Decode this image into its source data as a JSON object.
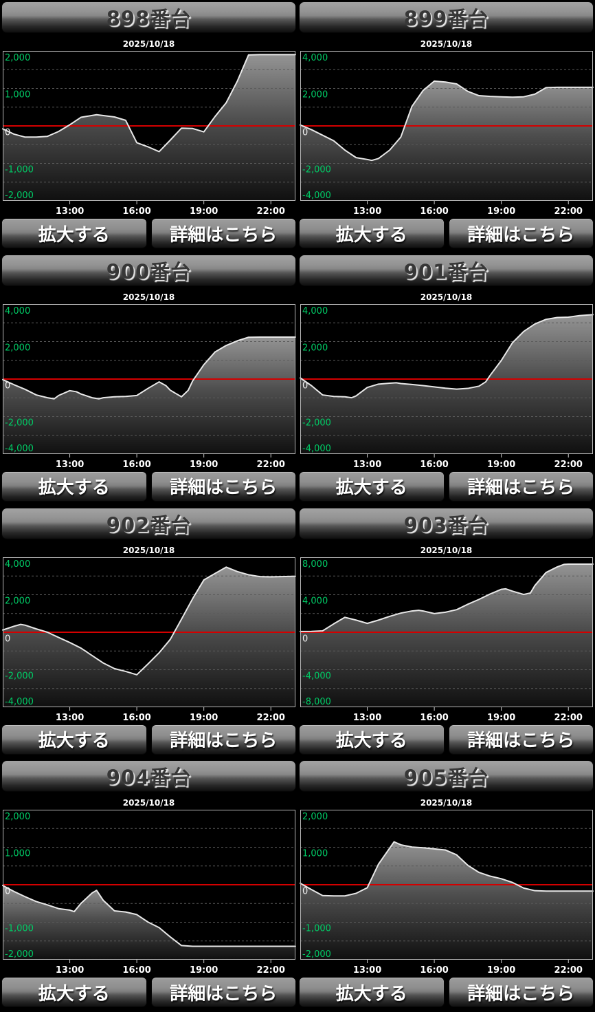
{
  "shared": {
    "zoom_button_label": "拡大する",
    "details_button_label": "詳細はこちら"
  },
  "axis": {
    "x_ticks": [
      "13:00",
      "16:00",
      "19:00",
      "22:00"
    ],
    "x_tick_hours": [
      13,
      16,
      19,
      22
    ],
    "x_range_hours": [
      10,
      23.1
    ]
  },
  "colors": {
    "background": "#000000",
    "zero_line_red": "#d40000",
    "y_label_green": "#00cc66",
    "zero_label_white": "#f0f0f0",
    "grid_dash": "#5a5a5a",
    "data_line": "#e8e8e8",
    "plot_border": "#b8b8b8",
    "x_label_white": "#ffffff"
  },
  "chart_data": [
    {
      "type": "area",
      "machine": "898",
      "title": "898番台",
      "date": "2025/10/18",
      "ylim": [
        -2000,
        2000
      ],
      "y_tick_labels": [
        "2,000",
        "1,000",
        "0",
        "-1,000",
        "-2,000"
      ],
      "x_hours": [
        10,
        10.5,
        11,
        11.5,
        12,
        12.5,
        13,
        13.5,
        14.2,
        15,
        15.5,
        16,
        16.5,
        17,
        17.5,
        18,
        18.5,
        19,
        19.5,
        20,
        20.5,
        21,
        21.5,
        22,
        23.1
      ],
      "values": [
        -80,
        -220,
        -300,
        -300,
        -280,
        -150,
        30,
        230,
        300,
        240,
        150,
        -450,
        -560,
        -690,
        -380,
        -60,
        -70,
        -160,
        250,
        620,
        1200,
        1900,
        1910,
        1910,
        1910
      ]
    },
    {
      "type": "area",
      "machine": "899",
      "title": "899番台",
      "date": "2025/10/18",
      "ylim": [
        -4000,
        4000
      ],
      "y_tick_labels": [
        "4,000",
        "2,000",
        "0",
        "-2,000",
        "-4,000"
      ],
      "x_hours": [
        10,
        10.5,
        11,
        11.5,
        12,
        12.5,
        13,
        13.2,
        13.5,
        14,
        14.5,
        15,
        15.5,
        16,
        16.5,
        17,
        17.5,
        18,
        18.5,
        19,
        19.5,
        20,
        20.5,
        21,
        21.5,
        22,
        23.1
      ],
      "values": [
        50,
        -200,
        -500,
        -800,
        -1300,
        -1700,
        -1800,
        -1850,
        -1750,
        -1300,
        -600,
        1050,
        1900,
        2400,
        2350,
        2250,
        1850,
        1620,
        1580,
        1560,
        1540,
        1560,
        1700,
        2050,
        2070,
        2070,
        2070
      ]
    },
    {
      "type": "area",
      "machine": "900",
      "title": "900番台",
      "date": "2025/10/18",
      "ylim": [
        -4000,
        4000
      ],
      "y_tick_labels": [
        "4,000",
        "2,000",
        "0",
        "-2,000",
        "-4,000"
      ],
      "x_hours": [
        10,
        10.5,
        11,
        11.5,
        12,
        12.3,
        12.5,
        13,
        13.3,
        13.5,
        14,
        14.3,
        14.5,
        15,
        15.5,
        16,
        16.5,
        17,
        17.3,
        17.5,
        18,
        18.3,
        18.5,
        19,
        19.5,
        20,
        20.5,
        21,
        21.5,
        22,
        23.1
      ],
      "values": [
        -30,
        -300,
        -550,
        -850,
        -1000,
        -1060,
        -880,
        -620,
        -680,
        -800,
        -1000,
        -1060,
        -1000,
        -950,
        -930,
        -880,
        -500,
        -150,
        -350,
        -600,
        -950,
        -600,
        -100,
        770,
        1450,
        1800,
        2050,
        2240,
        2250,
        2250,
        2250
      ]
    },
    {
      "type": "area",
      "machine": "901",
      "title": "901番台",
      "date": "2025/10/18",
      "ylim": [
        -4000,
        4000
      ],
      "y_tick_labels": [
        "4,000",
        "2,000",
        "0",
        "-2,000",
        "-4,000"
      ],
      "x_hours": [
        10,
        10.5,
        11,
        11.5,
        12,
        12.3,
        12.5,
        13,
        13.5,
        14,
        14.3,
        14.5,
        15,
        15.5,
        16,
        16.5,
        17,
        17.5,
        18,
        18.3,
        18.5,
        19,
        19.5,
        20,
        20.5,
        21,
        21.5,
        22,
        22.5,
        23.1
      ],
      "values": [
        60,
        -350,
        -850,
        -930,
        -950,
        -1000,
        -900,
        -450,
        -270,
        -220,
        -200,
        -240,
        -290,
        -350,
        -420,
        -490,
        -540,
        -500,
        -380,
        -150,
        200,
        1000,
        1950,
        2550,
        2950,
        3200,
        3300,
        3320,
        3400,
        3450
      ]
    },
    {
      "type": "area",
      "machine": "902",
      "title": "902番台",
      "date": "2025/10/18",
      "ylim": [
        -4000,
        4000
      ],
      "y_tick_labels": [
        "4,000",
        "2,000",
        "0",
        "-2,000",
        "-4,000"
      ],
      "x_hours": [
        10,
        10.5,
        10.8,
        11,
        11.5,
        12,
        12.5,
        13,
        13.5,
        14,
        14.5,
        15,
        15.5,
        16,
        16.5,
        17,
        17.5,
        18,
        18.5,
        19,
        19.5,
        20,
        20.5,
        21,
        21.5,
        22,
        23.1
      ],
      "values": [
        120,
        320,
        420,
        380,
        180,
        0,
        -280,
        -550,
        -850,
        -1250,
        -1650,
        -1950,
        -2100,
        -2280,
        -1700,
        -1100,
        -380,
        700,
        1800,
        2800,
        3150,
        3490,
        3250,
        3080,
        2980,
        2970,
        3000
      ]
    },
    {
      "type": "area",
      "machine": "903",
      "title": "903番台",
      "date": "2025/10/18",
      "ylim": [
        -8000,
        8000
      ],
      "y_tick_labels": [
        "8,000",
        "4,000",
        "0",
        "-4,000",
        "-8,000"
      ],
      "x_hours": [
        10,
        10.5,
        11,
        11.5,
        12,
        12.5,
        13,
        13.5,
        14,
        14.5,
        15,
        15.3,
        15.5,
        16,
        16.5,
        17,
        17.5,
        18,
        18.5,
        19,
        19.2,
        19.5,
        20,
        20.3,
        20.5,
        21,
        21.5,
        21.8,
        22,
        23.1
      ],
      "values": [
        80,
        90,
        150,
        900,
        1600,
        1300,
        950,
        1300,
        1700,
        2050,
        2280,
        2350,
        2280,
        2000,
        2150,
        2420,
        3000,
        3520,
        4100,
        4600,
        4650,
        4400,
        4050,
        4200,
        5000,
        6400,
        7000,
        7270,
        7300,
        7300
      ]
    },
    {
      "type": "area",
      "machine": "904",
      "title": "904番台",
      "date": "2025/10/18",
      "ylim": [
        -2000,
        2000
      ],
      "y_tick_labels": [
        "2,000",
        "1,000",
        "0",
        "-1,000",
        "-2,000"
      ],
      "x_hours": [
        10,
        10.5,
        11,
        11.5,
        12,
        12.5,
        13,
        13.2,
        13.5,
        14,
        14.2,
        14.5,
        15,
        15.5,
        16,
        16.5,
        17,
        17.5,
        18,
        18.5,
        19,
        20,
        21,
        22,
        23.1
      ],
      "values": [
        -20,
        -180,
        -320,
        -450,
        -540,
        -640,
        -680,
        -720,
        -500,
        -220,
        -150,
        -420,
        -700,
        -730,
        -800,
        -1000,
        -1150,
        -1400,
        -1630,
        -1650,
        -1650,
        -1650,
        -1650,
        -1650,
        -1650
      ]
    },
    {
      "type": "area",
      "machine": "905",
      "title": "905番台",
      "date": "2025/10/18",
      "ylim": [
        -2000,
        2000
      ],
      "y_tick_labels": [
        "2,000",
        "1,000",
        "0",
        "-1,000",
        "-2,000"
      ],
      "x_hours": [
        10,
        10.5,
        11,
        11.5,
        12,
        12.5,
        13,
        13.5,
        14.2,
        14.5,
        15,
        15.5,
        16,
        16.5,
        17,
        17.5,
        18,
        18.5,
        19,
        19.5,
        20,
        20.5,
        21,
        22,
        23.1
      ],
      "values": [
        40,
        -130,
        -290,
        -300,
        -300,
        -230,
        -80,
        550,
        1150,
        1070,
        1010,
        990,
        960,
        930,
        800,
        520,
        330,
        230,
        160,
        60,
        -90,
        -160,
        -170,
        -170,
        -170
      ]
    }
  ]
}
